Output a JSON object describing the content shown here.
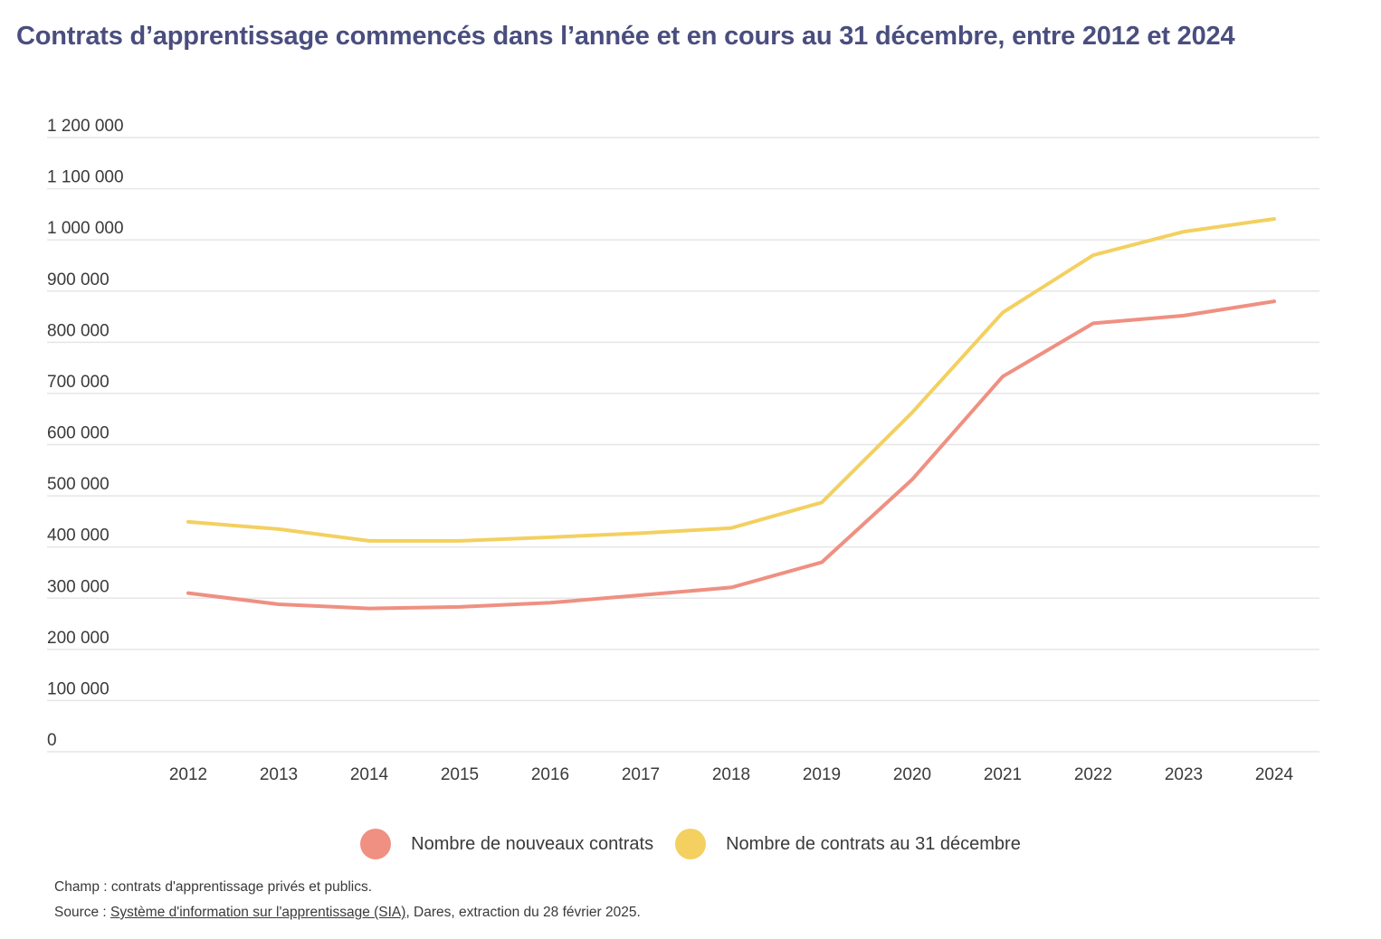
{
  "title": "Contrats d’apprentissage commencés dans l’année et en cours au 31 décembre, entre 2012 et 2024",
  "colors": {
    "title": "#4a4e7e",
    "grid": "#e6e6e6",
    "text": "#3a3a3a"
  },
  "chart_data": {
    "type": "line",
    "x": [
      "2012",
      "2013",
      "2014",
      "2015",
      "2016",
      "2017",
      "2018",
      "2019",
      "2020",
      "2021",
      "2022",
      "2023",
      "2024"
    ],
    "y_ticks": [
      "0",
      "100 000",
      "200 000",
      "300 000",
      "400 000",
      "500 000",
      "600 000",
      "700 000",
      "800 000",
      "900 000",
      "1 000 000",
      "1 100 000",
      "1 200 000"
    ],
    "ylim": [
      0,
      1200000
    ],
    "grid": true,
    "legend_position": "bottom-center",
    "series": [
      {
        "name": "Nombre de nouveaux contrats",
        "color": "#ef9082",
        "values": [
          310000,
          288000,
          280000,
          283000,
          291000,
          306000,
          321000,
          370000,
          532000,
          733000,
          837000,
          852000,
          880000
        ]
      },
      {
        "name": "Nombre de contrats au 31 décembre",
        "color": "#f3d060",
        "values": [
          449000,
          435000,
          412000,
          412000,
          419000,
          427000,
          437000,
          487000,
          663000,
          858000,
          970000,
          1016000,
          1041000
        ]
      }
    ]
  },
  "notes": {
    "champ": "Champ : contrats d'apprentissage privés et publics.",
    "source_prefix": "Source : ",
    "source_link": "Système d'information sur l'apprentissage (SIA)",
    "source_suffix": ", Dares, extraction du 28 février 2025."
  }
}
